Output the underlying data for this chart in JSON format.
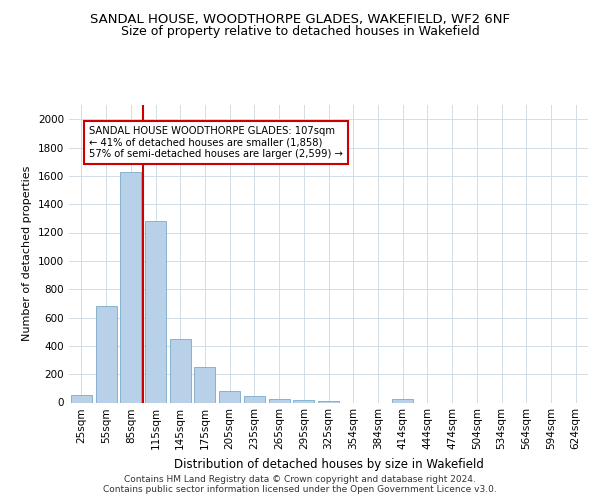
{
  "title1": "SANDAL HOUSE, WOODTHORPE GLADES, WAKEFIELD, WF2 6NF",
  "title2": "Size of property relative to detached houses in Wakefield",
  "xlabel": "Distribution of detached houses by size in Wakefield",
  "ylabel": "Number of detached properties",
  "categories": [
    "25sqm",
    "55sqm",
    "85sqm",
    "115sqm",
    "145sqm",
    "175sqm",
    "205sqm",
    "235sqm",
    "265sqm",
    "295sqm",
    "325sqm",
    "354sqm",
    "384sqm",
    "414sqm",
    "444sqm",
    "474sqm",
    "504sqm",
    "534sqm",
    "564sqm",
    "594sqm",
    "624sqm"
  ],
  "values": [
    50,
    680,
    1630,
    1280,
    450,
    250,
    80,
    45,
    25,
    20,
    10,
    0,
    0,
    25,
    0,
    0,
    0,
    0,
    0,
    0,
    0
  ],
  "bar_color": "#b8d0e8",
  "bar_edge_color": "#7aaac8",
  "grid_color": "#d0dde8",
  "annotation_text": "SANDAL HOUSE WOODTHORPE GLADES: 107sqm\n← 41% of detached houses are smaller (1,858)\n57% of semi-detached houses are larger (2,599) →",
  "annotation_box_color": "#ffffff",
  "annotation_box_edge": "#cc0000",
  "vline_color": "#cc0000",
  "vline_x": 2.5,
  "ylim": [
    0,
    2100
  ],
  "yticks": [
    0,
    200,
    400,
    600,
    800,
    1000,
    1200,
    1400,
    1600,
    1800,
    2000
  ],
  "footer": "Contains HM Land Registry data © Crown copyright and database right 2024.\nContains public sector information licensed under the Open Government Licence v3.0.",
  "title1_fontsize": 9.5,
  "title2_fontsize": 9,
  "xlabel_fontsize": 8.5,
  "ylabel_fontsize": 8,
  "tick_fontsize": 7.5,
  "footer_fontsize": 6.5
}
